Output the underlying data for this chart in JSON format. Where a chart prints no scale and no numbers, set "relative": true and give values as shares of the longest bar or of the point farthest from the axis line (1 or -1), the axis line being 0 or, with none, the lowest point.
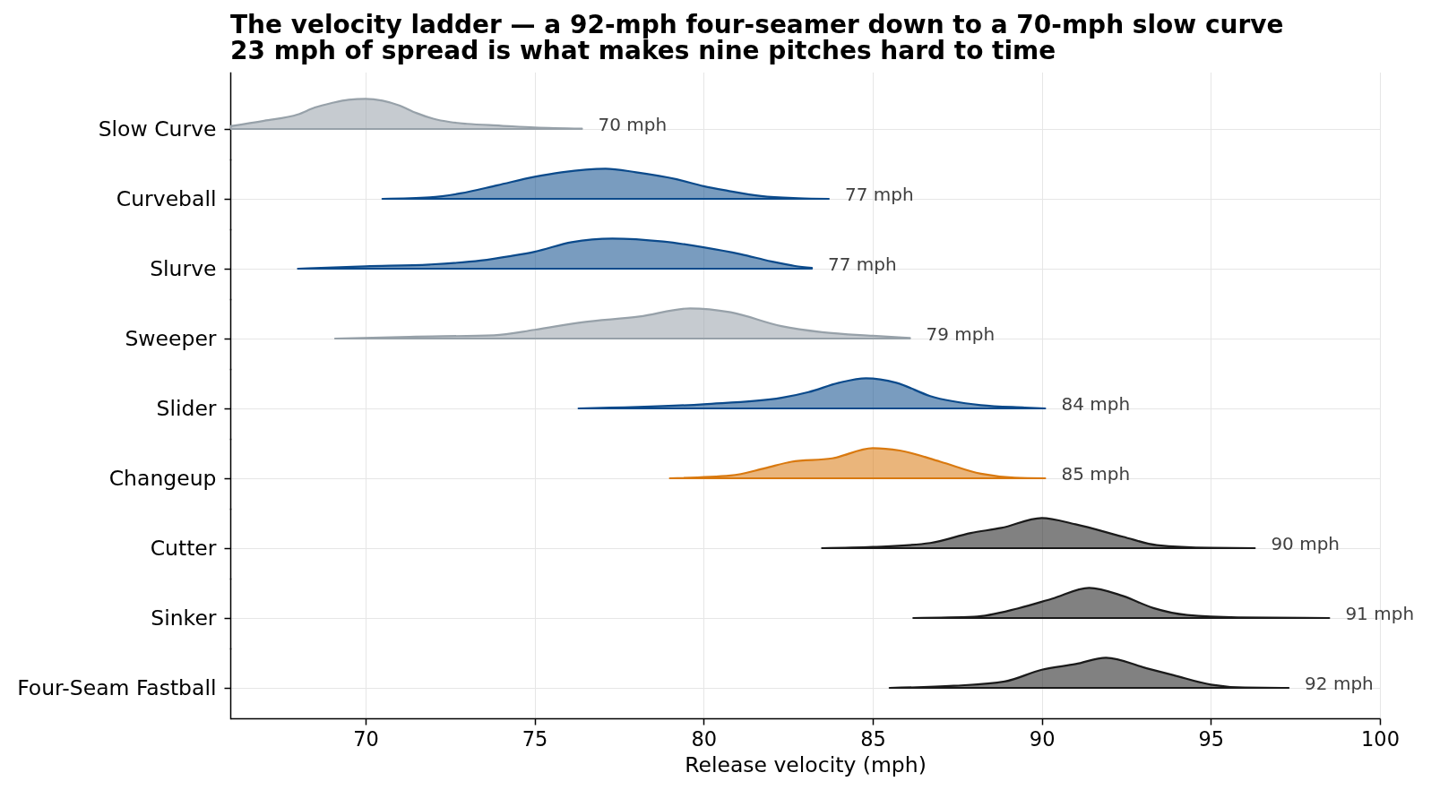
{
  "chart_data": [
    {
      "type": "area",
      "title": "The velocity ladder — a 92-mph four-seamer down to a 70-mph slow curve",
      "subtitle": "23 mph of spread is what makes nine pitches hard to time",
      "ylabel": "Slow Curve",
      "relative": true,
      "xlim": [
        66,
        100
      ],
      "xticks": [
        70,
        75,
        80,
        85,
        90,
        95,
        100
      ],
      "grid": true,
      "tick_labels": false,
      "series": [
        {
          "color": "#97a1a9",
          "x": [
            66.0,
            67.0,
            68.0,
            68.5,
            69.0,
            69.5,
            70.0,
            70.5,
            71.0,
            71.5,
            72.0,
            72.5,
            73.0,
            74.0,
            75.0,
            76.4
          ],
          "values": [
            0.09,
            0.27,
            0.48,
            0.71,
            0.86,
            0.97,
            1.0,
            0.94,
            0.78,
            0.53,
            0.34,
            0.23,
            0.17,
            0.11,
            0.05,
            0.01
          ]
        }
      ],
      "annotations": [
        "70 mph"
      ]
    },
    {
      "type": "area",
      "ylabel": "Curveball",
      "relative": true,
      "xlim": [
        66,
        100
      ],
      "xticks": [
        70,
        75,
        80,
        85,
        90,
        95,
        100
      ],
      "grid": true,
      "tick_labels": false,
      "series": [
        {
          "color": "#0b4a8b",
          "x": [
            70.5,
            71.9,
            72.8,
            73.9,
            75.0,
            75.8,
            77.1,
            78.0,
            79.2,
            80.0,
            80.7,
            81.7,
            82.8,
            83.7
          ],
          "values": [
            0,
            0.05,
            0.18,
            0.45,
            0.73,
            0.88,
            1.0,
            0.88,
            0.65,
            0.42,
            0.27,
            0.09,
            0.02,
            0
          ]
        }
      ],
      "annotations": [
        "77 mph"
      ]
    },
    {
      "type": "area",
      "ylabel": "Slurve",
      "relative": true,
      "xlim": [
        66,
        100
      ],
      "xticks": [
        70,
        75,
        80,
        85,
        90,
        95,
        100
      ],
      "grid": true,
      "tick_labels": false,
      "series": [
        {
          "color": "#0b4a8b",
          "x": [
            68.0,
            70.0,
            71.9,
            73.4,
            74.3,
            75.0,
            76.1,
            77.3,
            78.8,
            80.0,
            81.1,
            82.0,
            82.7,
            83.2
          ],
          "values": [
            0,
            0.08,
            0.14,
            0.27,
            0.42,
            0.56,
            0.88,
            1.0,
            0.9,
            0.71,
            0.48,
            0.24,
            0.09,
            0.03
          ]
        }
      ],
      "annotations": [
        "77 mph"
      ]
    },
    {
      "type": "area",
      "ylabel": "Sweeper",
      "relative": true,
      "xlim": [
        66,
        100
      ],
      "xticks": [
        70,
        75,
        80,
        85,
        90,
        95,
        100
      ],
      "grid": true,
      "tick_labels": false,
      "series": [
        {
          "color": "#97a1a9",
          "x": [
            69.1,
            71.3,
            73.8,
            75.0,
            76.4,
            78.1,
            79.6,
            80.8,
            82.3,
            83.5,
            85.0,
            86.1
          ],
          "values": [
            0,
            0.06,
            0.11,
            0.29,
            0.54,
            0.73,
            1.0,
            0.87,
            0.41,
            0.21,
            0.09,
            0.02
          ]
        }
      ],
      "annotations": [
        "79 mph"
      ]
    },
    {
      "type": "area",
      "ylabel": "Slider",
      "relative": true,
      "xlim": [
        66,
        100
      ],
      "xticks": [
        70,
        75,
        80,
        85,
        90,
        95,
        100
      ],
      "grid": true,
      "tick_labels": false,
      "series": [
        {
          "color": "#0b4a8b",
          "x": [
            76.3,
            80.0,
            82.3,
            83.1,
            84.0,
            84.8,
            85.7,
            86.7,
            88.2,
            89.5,
            90.1
          ],
          "values": [
            0,
            0.14,
            0.35,
            0.54,
            0.85,
            1.0,
            0.85,
            0.41,
            0.11,
            0.03,
            0
          ]
        }
      ],
      "annotations": [
        "84 mph"
      ]
    },
    {
      "type": "area",
      "ylabel": "Changeup",
      "relative": true,
      "xlim": [
        66,
        100
      ],
      "xticks": [
        70,
        75,
        80,
        85,
        90,
        95,
        100
      ],
      "grid": true,
      "tick_labels": false,
      "series": [
        {
          "color": "#d9790f",
          "x": [
            79.0,
            80.8,
            81.8,
            82.6,
            83.8,
            85.0,
            85.8,
            87.0,
            88.2,
            89.2,
            90.1
          ],
          "values": [
            0,
            0.09,
            0.33,
            0.55,
            0.66,
            1.0,
            0.92,
            0.55,
            0.15,
            0.02,
            0
          ]
        }
      ],
      "annotations": [
        "85 mph"
      ]
    },
    {
      "type": "area",
      "ylabel": "Cutter",
      "relative": true,
      "xlim": [
        66,
        100
      ],
      "xticks": [
        70,
        75,
        80,
        85,
        90,
        95,
        100
      ],
      "grid": true,
      "tick_labels": false,
      "series": [
        {
          "color": "#1a1a1a",
          "x": [
            83.5,
            85.0,
            86.7,
            87.9,
            88.8,
            90.0,
            91.0,
            92.4,
            93.4,
            95.0,
            96.3
          ],
          "values": [
            0,
            0.04,
            0.17,
            0.5,
            0.67,
            1.0,
            0.79,
            0.38,
            0.1,
            0.01,
            0
          ]
        }
      ],
      "annotations": [
        "90 mph"
      ]
    },
    {
      "type": "area",
      "ylabel": "Sinker",
      "relative": true,
      "xlim": [
        66,
        100
      ],
      "xticks": [
        70,
        75,
        80,
        85,
        90,
        95,
        100
      ],
      "grid": true,
      "tick_labels": false,
      "series": [
        {
          "color": "#1a1a1a",
          "x": [
            86.2,
            88.0,
            89.3,
            90.3,
            91.4,
            92.4,
            93.3,
            94.3,
            95.8,
            98.5
          ],
          "values": [
            0,
            0.04,
            0.32,
            0.64,
            1.0,
            0.73,
            0.33,
            0.1,
            0.02,
            0
          ]
        }
      ],
      "annotations": [
        "91 mph"
      ]
    },
    {
      "type": "area",
      "ylabel": "Four-Seam Fastball",
      "xlabel": "Release velocity (mph)",
      "relative": true,
      "xlim": [
        66,
        100
      ],
      "xticks": [
        70,
        75,
        80,
        85,
        90,
        95,
        100
      ],
      "grid": true,
      "tick_labels": "x",
      "series": [
        {
          "color": "#1a1a1a",
          "x": [
            85.5,
            87.4,
            88.9,
            90.0,
            91.0,
            91.9,
            93.1,
            93.9,
            95.0,
            96.0,
            97.3
          ],
          "values": [
            0,
            0.07,
            0.21,
            0.6,
            0.79,
            1.0,
            0.65,
            0.42,
            0.11,
            0.01,
            0
          ]
        }
      ],
      "annotations": [
        "92 mph"
      ]
    }
  ]
}
